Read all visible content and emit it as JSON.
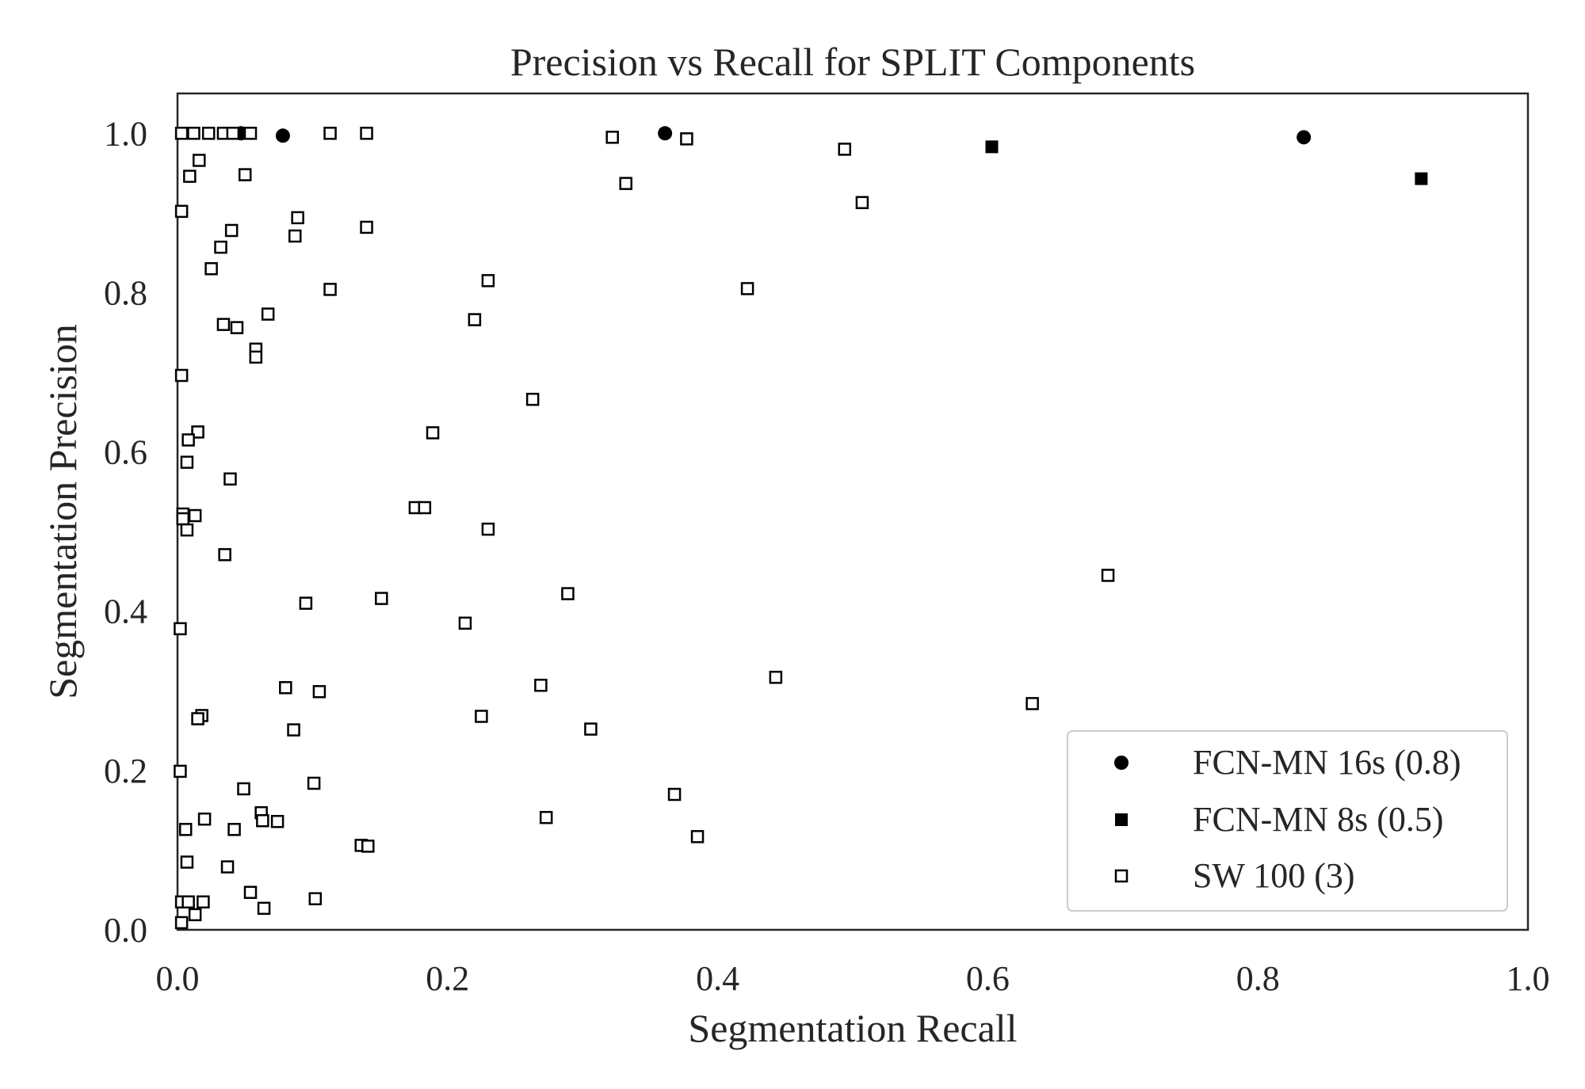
{
  "chart_data": {
    "type": "scatter",
    "title": "Precision vs Recall for SPLIT Components",
    "xlabel": "Segmentation Recall",
    "ylabel": "Segmentation Precision",
    "xlim": [
      0.0,
      1.0
    ],
    "ylim": [
      0.0,
      1.05
    ],
    "x_ticks": [
      "0.0",
      "0.2",
      "0.4",
      "0.6",
      "0.8",
      "1.0"
    ],
    "y_ticks": [
      "0.0",
      "0.2",
      "0.4",
      "0.6",
      "0.8",
      "1.0"
    ],
    "grid": false,
    "legend_position": "lower-right",
    "series": [
      {
        "name": "FCN-MN 16s (0.8)",
        "marker": "filled-circle",
        "color": "#000000",
        "points": [
          [
            0.047,
            1.0
          ],
          [
            0.078,
            0.997
          ],
          [
            0.361,
            1.0
          ],
          [
            0.834,
            0.995
          ]
        ]
      },
      {
        "name": "FCN-MN 8s (0.5)",
        "marker": "filled-square",
        "color": "#000000",
        "points": [
          [
            0.603,
            0.983
          ],
          [
            0.921,
            0.943
          ]
        ]
      },
      {
        "name": "SW 100 (3)",
        "marker": "hollow-square",
        "color": "#000000",
        "points": [
          [
            0.003,
            1.0
          ],
          [
            0.012,
            1.0
          ],
          [
            0.023,
            1.0
          ],
          [
            0.034,
            1.0
          ],
          [
            0.041,
            1.0
          ],
          [
            0.054,
            1.0
          ],
          [
            0.113,
            1.0
          ],
          [
            0.14,
            1.0
          ],
          [
            0.322,
            0.995
          ],
          [
            0.377,
            0.993
          ],
          [
            0.494,
            0.98
          ],
          [
            0.016,
            0.966
          ],
          [
            0.009,
            0.946
          ],
          [
            0.05,
            0.948
          ],
          [
            0.332,
            0.937
          ],
          [
            0.507,
            0.913
          ],
          [
            0.003,
            0.902
          ],
          [
            0.089,
            0.894
          ],
          [
            0.04,
            0.878
          ],
          [
            0.087,
            0.871
          ],
          [
            0.14,
            0.882
          ],
          [
            0.032,
            0.857
          ],
          [
            0.025,
            0.83
          ],
          [
            0.23,
            0.815
          ],
          [
            0.113,
            0.804
          ],
          [
            0.422,
            0.805
          ],
          [
            0.067,
            0.773
          ],
          [
            0.22,
            0.766
          ],
          [
            0.034,
            0.76
          ],
          [
            0.044,
            0.756
          ],
          [
            0.058,
            0.729
          ],
          [
            0.058,
            0.719
          ],
          [
            0.003,
            0.696
          ],
          [
            0.263,
            0.666
          ],
          [
            0.015,
            0.625
          ],
          [
            0.189,
            0.624
          ],
          [
            0.008,
            0.615
          ],
          [
            0.007,
            0.587
          ],
          [
            0.039,
            0.566
          ],
          [
            0.176,
            0.53
          ],
          [
            0.183,
            0.53
          ],
          [
            0.004,
            0.522
          ],
          [
            0.004,
            0.516
          ],
          [
            0.013,
            0.52
          ],
          [
            0.007,
            0.502
          ],
          [
            0.23,
            0.503
          ],
          [
            0.035,
            0.471
          ],
          [
            0.689,
            0.445
          ],
          [
            0.289,
            0.422
          ],
          [
            0.151,
            0.416
          ],
          [
            0.095,
            0.41
          ],
          [
            0.213,
            0.385
          ],
          [
            0.002,
            0.378
          ],
          [
            0.443,
            0.317
          ],
          [
            0.08,
            0.304
          ],
          [
            0.105,
            0.299
          ],
          [
            0.269,
            0.307
          ],
          [
            0.633,
            0.284
          ],
          [
            0.018,
            0.269
          ],
          [
            0.015,
            0.265
          ],
          [
            0.225,
            0.268
          ],
          [
            0.086,
            0.251
          ],
          [
            0.306,
            0.252
          ],
          [
            0.002,
            0.199
          ],
          [
            0.101,
            0.184
          ],
          [
            0.049,
            0.177
          ],
          [
            0.368,
            0.17
          ],
          [
            0.062,
            0.147
          ],
          [
            0.02,
            0.139
          ],
          [
            0.063,
            0.137
          ],
          [
            0.074,
            0.136
          ],
          [
            0.273,
            0.141
          ],
          [
            0.006,
            0.126
          ],
          [
            0.042,
            0.126
          ],
          [
            0.385,
            0.117
          ],
          [
            0.136,
            0.106
          ],
          [
            0.141,
            0.105
          ],
          [
            0.007,
            0.085
          ],
          [
            0.037,
            0.079
          ],
          [
            0.054,
            0.047
          ],
          [
            0.003,
            0.035
          ],
          [
            0.008,
            0.035
          ],
          [
            0.019,
            0.035
          ],
          [
            0.102,
            0.039
          ],
          [
            0.064,
            0.027
          ],
          [
            0.013,
            0.019
          ],
          [
            0.003,
            0.009
          ]
        ]
      }
    ]
  }
}
